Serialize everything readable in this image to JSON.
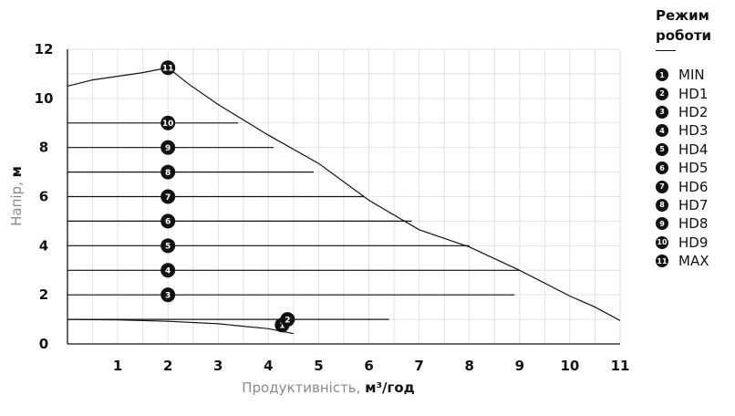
{
  "chart_data": {
    "type": "line",
    "xlabel": {
      "text": "Продуктивність, ",
      "unit": "м³/год"
    },
    "ylabel": {
      "text": "Напір, ",
      "unit": "м"
    },
    "xlim": [
      0,
      11
    ],
    "ylim": [
      0,
      12
    ],
    "x_ticks": [
      0,
      1,
      2,
      3,
      4,
      5,
      6,
      7,
      8,
      9,
      10,
      11
    ],
    "y_ticks": [
      0,
      2,
      4,
      6,
      8,
      10,
      12
    ],
    "tick_labels_x": [
      "1",
      "2",
      "3",
      "4",
      "5",
      "6",
      "7",
      "8",
      "9",
      "10",
      "11"
    ],
    "tick_labels_y": [
      "0",
      "2",
      "4",
      "6",
      "8",
      "10",
      "12"
    ],
    "grid": true,
    "series": [
      {
        "marker": "1",
        "points": [
          [
            0,
            1.0
          ],
          [
            1,
            0.98
          ],
          [
            2,
            0.92
          ],
          [
            3,
            0.82
          ],
          [
            4,
            0.62
          ],
          [
            4.5,
            0.42
          ]
        ],
        "label_at": [
          1.95,
          0.58
        ]
      },
      {
        "marker": "2",
        "points": [
          [
            0,
            1.0
          ],
          [
            6.4,
            1.0
          ]
        ],
        "label_at": [
          2.05,
          1.0
        ]
      },
      {
        "marker": "3",
        "points": [
          [
            0,
            2.0
          ],
          [
            8.9,
            2.0
          ]
        ],
        "label_at": [
          0,
          2.0
        ]
      },
      {
        "marker": "4",
        "points": [
          [
            0,
            3.0
          ],
          [
            9.0,
            3.0
          ]
        ],
        "label_at": [
          0,
          3.0
        ]
      },
      {
        "marker": "5",
        "points": [
          [
            0,
            4.0
          ],
          [
            8.0,
            4.0
          ]
        ],
        "label_at": [
          0,
          4.0
        ]
      },
      {
        "marker": "6",
        "points": [
          [
            0,
            5.0
          ],
          [
            6.85,
            5.0
          ]
        ],
        "label_at": [
          0,
          5.0
        ]
      },
      {
        "marker": "7",
        "points": [
          [
            0,
            6.0
          ],
          [
            5.9,
            6.0
          ]
        ],
        "label_at": [
          0,
          6.0
        ]
      },
      {
        "marker": "8",
        "points": [
          [
            0,
            7.0
          ],
          [
            4.9,
            7.0
          ]
        ],
        "label_at": [
          0,
          7.0
        ]
      },
      {
        "marker": "9",
        "points": [
          [
            0,
            8.0
          ],
          [
            4.1,
            8.0
          ]
        ],
        "label_at": [
          0,
          8.0
        ]
      },
      {
        "marker": "10",
        "points": [
          [
            0,
            9.0
          ],
          [
            3.4,
            9.0
          ]
        ],
        "label_at": [
          0,
          9.0
        ]
      },
      {
        "marker": "11",
        "points": [
          [
            -0.2,
            10.5
          ],
          [
            0.5,
            10.75
          ],
          [
            1.5,
            11.05
          ],
          [
            2,
            11.25
          ],
          [
            2.4,
            10.6
          ],
          [
            3,
            9.75
          ],
          [
            4,
            8.5
          ],
          [
            5,
            7.35
          ],
          [
            6,
            5.85
          ],
          [
            7,
            4.65
          ],
          [
            8,
            3.95
          ],
          [
            9,
            3.0
          ],
          [
            10,
            1.95
          ],
          [
            10.5,
            1.5
          ],
          [
            11,
            0.95
          ]
        ],
        "label_at": [
          0,
          11.25
        ]
      }
    ]
  },
  "legend": {
    "title": "Режим роботи",
    "items": [
      {
        "badge": "1",
        "label": "MIN"
      },
      {
        "badge": "2",
        "label": "HD1"
      },
      {
        "badge": "3",
        "label": "HD2"
      },
      {
        "badge": "4",
        "label": "HD3"
      },
      {
        "badge": "5",
        "label": "HD4"
      },
      {
        "badge": "6",
        "label": "HD5"
      },
      {
        "badge": "7",
        "label": "HD6"
      },
      {
        "badge": "8",
        "label": "HD7"
      },
      {
        "badge": "9",
        "label": "HD8"
      },
      {
        "badge": "10",
        "label": "HD9"
      },
      {
        "badge": "11",
        "label": "MAX"
      }
    ]
  }
}
